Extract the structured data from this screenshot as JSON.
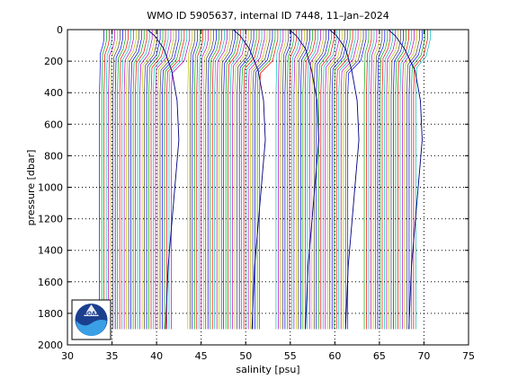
{
  "chart_data": {
    "type": "line",
    "title": "WMO ID 5905637, internal ID 7448, 11–Jan–2024",
    "xlabel": "salinity [psu]",
    "ylabel": "pressure [dbar]",
    "xlim": [
      30,
      75
    ],
    "ylim": [
      2000,
      0
    ],
    "y_reversed": true,
    "xticks": [
      "30",
      "35",
      "40",
      "45",
      "50",
      "55",
      "60",
      "65",
      "70",
      "75"
    ],
    "yticks": [
      "0",
      "200",
      "400",
      "600",
      "800",
      "1000",
      "1200",
      "1400",
      "1600",
      "1800",
      "2000"
    ],
    "grid": "dotted",
    "legend": "none",
    "profile_offset_psu": 0.3,
    "profile_count": 123,
    "first_profile_surface_salinity": 34.1,
    "profile_bottom_pressure": 1900,
    "series_colors": [
      "#0000ff",
      "#00aa00",
      "#ff0000",
      "#00bfbf",
      "#bf00bf",
      "#bfbf00",
      "#404040"
    ],
    "highlight_profiles": [
      {
        "surface_salinity": 39.0,
        "deep_salinity": 42.3
      },
      {
        "surface_salinity": 48.6,
        "deep_salinity": 52.0
      },
      {
        "surface_salinity": 54.9,
        "deep_salinity": 58.0
      },
      {
        "surface_salinity": 59.4,
        "deep_salinity": 62.5
      },
      {
        "surface_salinity": 66.0,
        "deep_salinity": 69.6
      }
    ]
  },
  "logo": {
    "text": "NOAA",
    "outer_color": "#1b3f8f",
    "inner_color": "#3aa0e6"
  }
}
